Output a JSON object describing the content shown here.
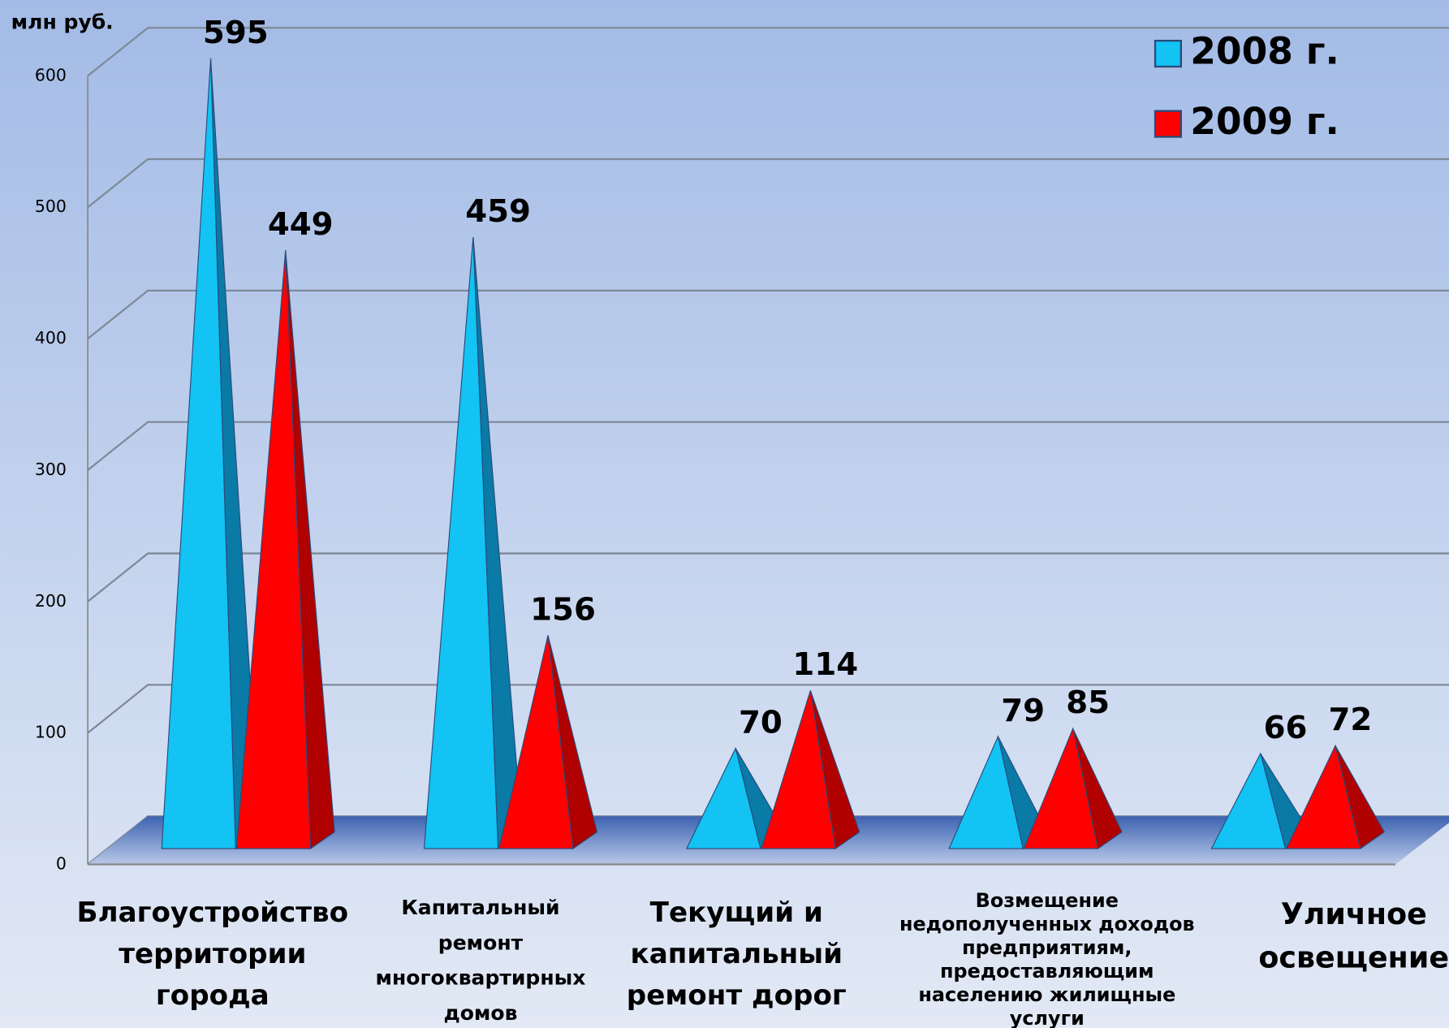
{
  "chart_data": {
    "type": "bar",
    "style": "3d-pyramid",
    "y_label": "млн руб.",
    "categories": [
      "Благоустройство\nтерритории\nгорода",
      "Капитальный\nремонт\nмногоквартирных\nдомов",
      "Текущий и\nкапитальный\nремонт дорог",
      "Возмещение\nнедополученных доходов\nпредприятиям,\nпредоставляющим\nнаселению жилищные\nуслуги",
      "Уличное\nосвещение"
    ],
    "series": [
      {
        "name": "2008 г.",
        "color": "#12c3f4",
        "values": [
          595,
          459,
          70,
          79,
          66
        ]
      },
      {
        "name": "2009 г.",
        "color": "#ff0000",
        "values": [
          449,
          156,
          114,
          85,
          72
        ]
      }
    ],
    "ylim": [
      0,
      600
    ],
    "yticks": [
      0,
      100,
      200,
      300,
      400,
      500,
      600
    ],
    "grid": true,
    "legend": "top-right"
  }
}
